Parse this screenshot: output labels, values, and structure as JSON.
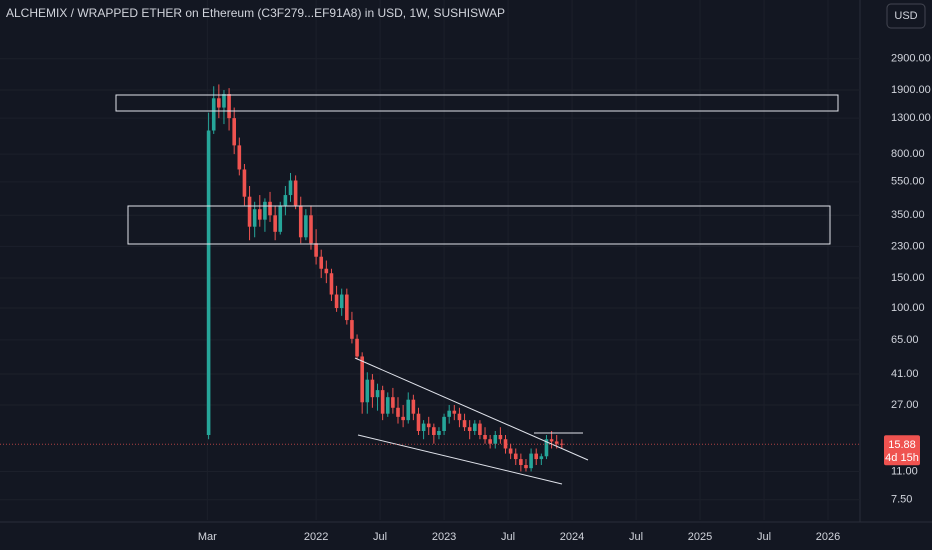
{
  "chart_data": {
    "type": "candlestick",
    "title": "ALCHEMIX / WRAPPED ETHER on Ethereum (C3F279...EF91A8) in USD, 1W, SUSHISWAP",
    "currency": "USD",
    "log_scale": true,
    "grid": true,
    "up_color": "#26a69a",
    "down_color": "#ef5350",
    "xlim": [
      2019.53,
      2026.25
    ],
    "xticks": [
      {
        "value": 2021.15,
        "label": "Mar"
      },
      {
        "value": 2022,
        "label": "2022"
      },
      {
        "value": 2022.5,
        "label": "Jul"
      },
      {
        "value": 2023,
        "label": "2023"
      },
      {
        "value": 2023.5,
        "label": "Jul"
      },
      {
        "value": 2024,
        "label": "2024"
      },
      {
        "value": 2024.5,
        "label": "Jul"
      },
      {
        "value": 2025,
        "label": "2025"
      },
      {
        "value": 2025.5,
        "label": "Jul"
      },
      {
        "value": 2026,
        "label": "2026"
      }
    ],
    "ylim": [
      5.71,
      6412
    ],
    "yticks": [
      {
        "value": 2900,
        "label": "2900.00"
      },
      {
        "value": 1900,
        "label": "1900.00"
      },
      {
        "value": 1300,
        "label": "1300.00"
      },
      {
        "value": 800,
        "label": "800.00"
      },
      {
        "value": 550,
        "label": "550.00"
      },
      {
        "value": 350,
        "label": "350.00"
      },
      {
        "value": 230,
        "label": "230.00"
      },
      {
        "value": 150,
        "label": "150.00"
      },
      {
        "value": 100,
        "label": "100.00"
      },
      {
        "value": 65,
        "label": "65.00"
      },
      {
        "value": 41,
        "label": "41.00"
      },
      {
        "value": 27,
        "label": "27.00"
      },
      {
        "value": 11,
        "label": "11.00"
      },
      {
        "value": 7.5,
        "label": "7.50"
      }
    ],
    "last_price": 15.88,
    "countdown": "4d 15h",
    "x": [
      2021.16,
      2021.2,
      2021.24,
      2021.28,
      2021.32,
      2021.36,
      2021.4,
      2021.44,
      2021.48,
      2021.52,
      2021.56,
      2021.6,
      2021.64,
      2021.68,
      2021.72,
      2021.76,
      2021.8,
      2021.84,
      2021.88,
      2021.92,
      2021.96,
      2022.0,
      2022.04,
      2022.08,
      2022.12,
      2022.16,
      2022.2,
      2022.24,
      2022.28,
      2022.32,
      2022.36,
      2022.4,
      2022.44,
      2022.48,
      2022.52,
      2022.56,
      2022.6,
      2022.64,
      2022.68,
      2022.72,
      2022.76,
      2022.8,
      2022.84,
      2022.88,
      2022.92,
      2022.96,
      2023.0,
      2023.04,
      2023.08,
      2023.12,
      2023.16,
      2023.2,
      2023.24,
      2023.28,
      2023.32,
      2023.36,
      2023.4,
      2023.44,
      2023.48,
      2023.52,
      2023.56,
      2023.6,
      2023.64,
      2023.68,
      2023.72,
      2023.76,
      2023.8,
      2023.84,
      2023.88,
      2023.92
    ],
    "open": [
      18,
      1100,
      1700,
      1500,
      1800,
      1300,
      900,
      650,
      450,
      300,
      380,
      330,
      420,
      350,
      280,
      400,
      460,
      560,
      400,
      260,
      350,
      240,
      200,
      170,
      160,
      120,
      100,
      120,
      85,
      66,
      52,
      28,
      38,
      30,
      33,
      24,
      30,
      26,
      23,
      22,
      29,
      24,
      19,
      21,
      20,
      18,
      19,
      23,
      25,
      24,
      22,
      20,
      19,
      21,
      18,
      17,
      16,
      18,
      17,
      15,
      14,
      13,
      12,
      11.5,
      14,
      13,
      13.5,
      17,
      16.5,
      16
    ],
    "high": [
      1400,
      2000,
      2050,
      1900,
      1950,
      1500,
      1000,
      700,
      520,
      420,
      460,
      440,
      480,
      400,
      420,
      520,
      620,
      600,
      450,
      380,
      400,
      290,
      220,
      190,
      170,
      135,
      130,
      130,
      95,
      70,
      55,
      42,
      41,
      36,
      35,
      32,
      34,
      30,
      27,
      32,
      31,
      26,
      22,
      23,
      21,
      20,
      24,
      27,
      27,
      26,
      24,
      22,
      22,
      22,
      20,
      18,
      19,
      20,
      18,
      16,
      15,
      14,
      13,
      15,
      15,
      14,
      18,
      19,
      18,
      17
    ],
    "low": [
      17,
      1050,
      1300,
      1200,
      1100,
      800,
      600,
      400,
      250,
      260,
      300,
      280,
      320,
      250,
      270,
      350,
      420,
      380,
      240,
      250,
      220,
      180,
      150,
      140,
      110,
      95,
      90,
      80,
      62,
      50,
      24,
      24,
      26,
      25,
      22,
      23,
      24,
      21,
      20,
      21,
      22,
      18,
      17,
      18,
      16,
      17,
      18,
      21,
      22,
      20,
      19,
      17,
      18,
      17,
      16,
      15,
      15,
      16,
      14,
      13,
      12,
      11,
      11,
      11,
      12,
      12,
      13,
      15,
      15,
      15
    ],
    "close": [
      1100,
      1700,
      1500,
      1800,
      1300,
      900,
      650,
      450,
      300,
      380,
      330,
      420,
      350,
      280,
      400,
      460,
      560,
      400,
      260,
      350,
      240,
      200,
      170,
      160,
      120,
      100,
      120,
      85,
      66,
      52,
      28,
      38,
      30,
      33,
      24,
      30,
      26,
      23,
      22,
      29,
      24,
      19,
      21,
      20,
      18,
      19,
      23,
      25,
      24,
      22,
      20,
      19,
      21,
      18,
      17,
      16,
      18,
      17,
      15,
      14,
      13,
      12,
      11.5,
      14,
      13,
      13.5,
      17,
      16.5,
      16,
      15.88
    ]
  }
}
